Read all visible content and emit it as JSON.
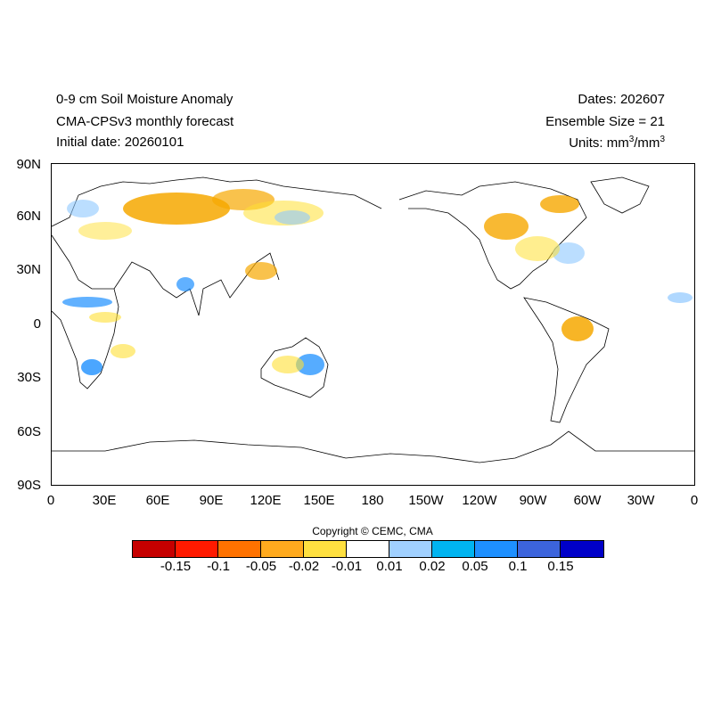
{
  "header": {
    "title_line1": "0-9 cm Soil Moisture Anomaly",
    "title_line2": "CMA-CPSv3 monthly forecast",
    "title_line3": "Initial date: 20260101",
    "dates": "Dates: 202607",
    "ensemble": "Ensemble Size = 21",
    "units_prefix": "Units: mm",
    "units_sup1": "3",
    "units_mid": "/mm",
    "units_sup2": "3"
  },
  "map": {
    "lat_labels": [
      "90N",
      "60N",
      "30N",
      "0",
      "30S",
      "60S",
      "90S"
    ],
    "lon_labels": [
      "0",
      "30E",
      "60E",
      "90E",
      "120E",
      "150E",
      "180",
      "150W",
      "120W",
      "90W",
      "60W",
      "30W",
      "0"
    ],
    "features": [
      {
        "name": "eurasia-dry",
        "color": "#f6a800"
      },
      {
        "name": "north-america-dry",
        "color": "#f6a800"
      },
      {
        "name": "south-america-dry",
        "color": "#f6a800"
      },
      {
        "name": "australia-wet",
        "color": "#1e90ff"
      },
      {
        "name": "africa-wet",
        "color": "#1e90ff"
      },
      {
        "name": "scattered-light-dry",
        "color": "#ffe033"
      },
      {
        "name": "scattered-light-wet",
        "color": "#8ec8ff"
      }
    ]
  },
  "copyright": "Copyright © CEMC, CMA",
  "colorbar": {
    "colors": [
      "#c60000",
      "#ff1a00",
      "#ff7200",
      "#ffaa1e",
      "#ffe040",
      "#ffffff",
      "#a0d0ff",
      "#00b4f0",
      "#1e90ff",
      "#3c64dc",
      "#0000c8"
    ],
    "labels": [
      "-0.15",
      "-0.1",
      "-0.05",
      "-0.02",
      "-0.01",
      "0.01",
      "0.02",
      "0.05",
      "0.1",
      "0.15"
    ]
  }
}
